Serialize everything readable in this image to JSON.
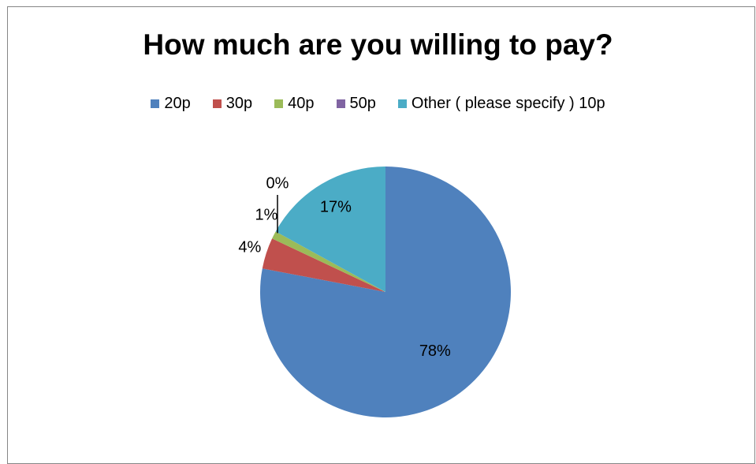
{
  "chart_data": {
    "type": "pie",
    "title": "How much are you willing to pay?",
    "legend_position": "top",
    "categories": [
      "20p",
      "30p",
      "40p",
      "50p",
      "Other ( please specify )  10p"
    ],
    "values": [
      78,
      4,
      1,
      0,
      17
    ],
    "data_labels": [
      "78%",
      "4%",
      "1%",
      "0%",
      "17%"
    ],
    "colors": [
      "#4F81BD",
      "#C0504D",
      "#9BBB59",
      "#8064A2",
      "#4BACC6"
    ]
  }
}
